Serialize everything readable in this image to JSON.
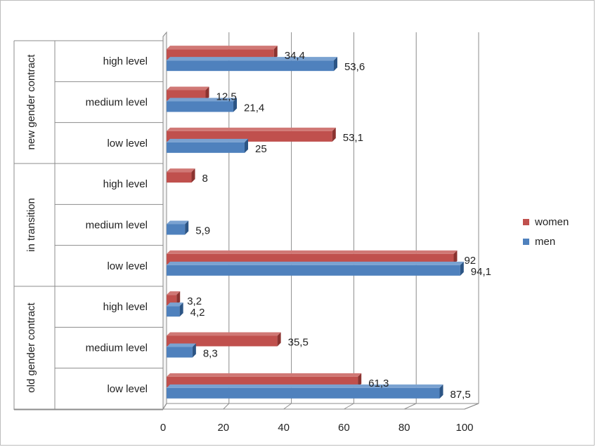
{
  "chart_data": {
    "type": "bar",
    "orientation": "horizontal",
    "groups": [
      {
        "name": "new gender contract",
        "categories": [
          "high level",
          "medium level",
          "low level"
        ]
      },
      {
        "name": "in transition",
        "categories": [
          "high level",
          "medium level",
          "low level"
        ]
      },
      {
        "name": "old gender contract",
        "categories": [
          "high level",
          "medium level",
          "low level"
        ]
      }
    ],
    "series": [
      {
        "name": "women",
        "color": "#c0504d",
        "values": [
          34.4,
          12.5,
          53.1,
          8,
          null,
          92,
          3.2,
          35.5,
          61.3
        ],
        "labels": [
          "34,4",
          "12,5",
          "53,1",
          "8",
          "",
          "92",
          "3,2",
          "35,5",
          "61,3"
        ]
      },
      {
        "name": "men",
        "color": "#4f81bd",
        "values": [
          53.6,
          21.4,
          25,
          null,
          5.9,
          94.1,
          4.2,
          8.3,
          87.5
        ],
        "labels": [
          "53,6",
          "21,4",
          "25",
          "",
          "5,9",
          "94,1",
          "4,2",
          "8,3",
          "87,5"
        ]
      }
    ],
    "xlim": [
      0,
      100
    ],
    "xticks": [
      0,
      20,
      40,
      60,
      80,
      100
    ],
    "grid": true,
    "legend_position": "right"
  },
  "legend": {
    "women_label": "women",
    "men_label": "men"
  }
}
